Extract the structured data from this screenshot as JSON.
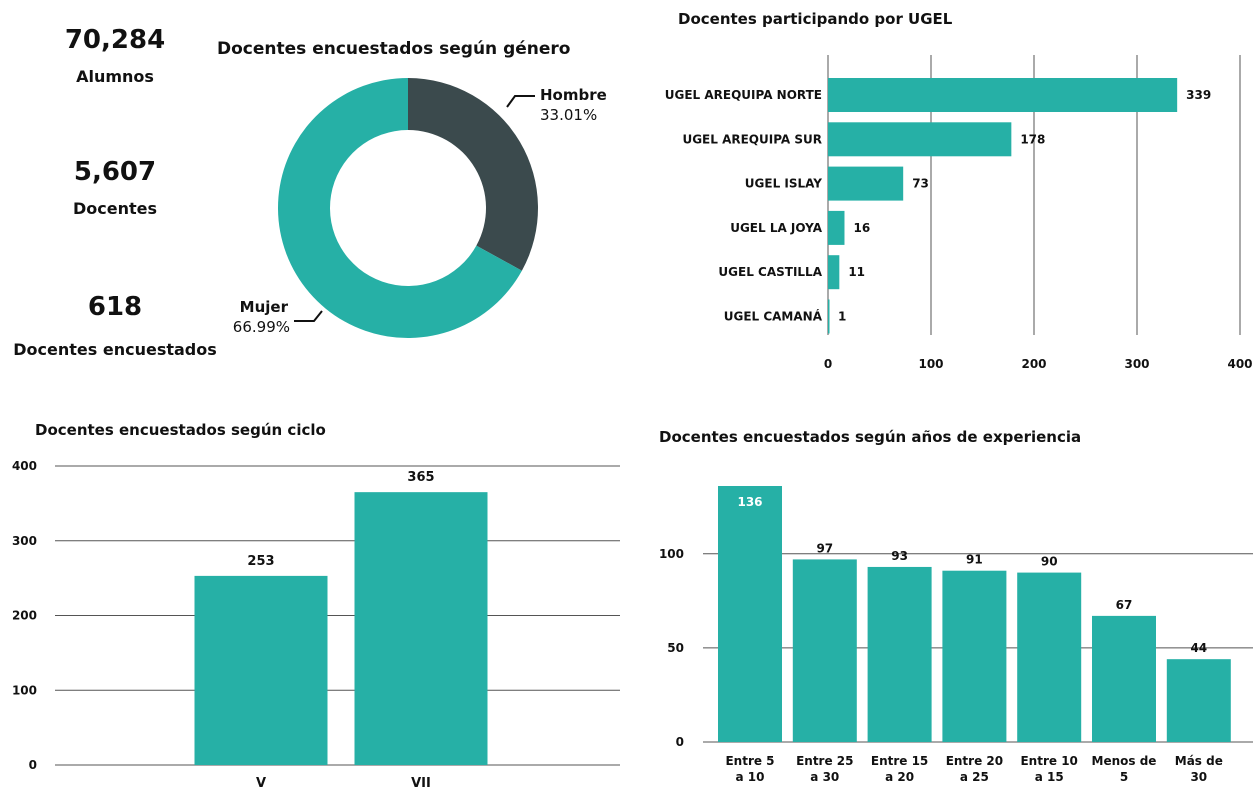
{
  "kpis": [
    {
      "value": "70,284",
      "label": "Alumnos"
    },
    {
      "value": "5,607",
      "label": "Docentes"
    },
    {
      "value": "618",
      "label": "Docentes encuestados"
    }
  ],
  "colors": {
    "teal": "#26b0a6",
    "dark": "#3b4a4d",
    "grid": "#555555",
    "text": "#111111"
  },
  "chart_data": [
    {
      "type": "pie",
      "donut": true,
      "title": "Docentes encuestados según género",
      "slices": [
        {
          "label": "Hombre",
          "value": 33.01,
          "display": "33.01%",
          "color": "#3b4a4d"
        },
        {
          "label": "Mujer",
          "value": 66.99,
          "display": "66.99%",
          "color": "#26b0a6"
        }
      ]
    },
    {
      "type": "bar",
      "orientation": "horizontal",
      "title": "Docentes participando por UGEL",
      "categories": [
        "UGEL AREQUIPA NORTE",
        "UGEL AREQUIPA SUR",
        "UGEL ISLAY",
        "UGEL LA JOYA",
        "UGEL CASTILLA",
        "UGEL CAMANÁ"
      ],
      "values": [
        339,
        178,
        73,
        16,
        11,
        1
      ],
      "xlim": [
        0,
        400
      ],
      "ticks": [
        0,
        100,
        200,
        300,
        400
      ],
      "grid": true
    },
    {
      "type": "bar",
      "title": "Docentes encuestados según ciclo",
      "categories": [
        "V",
        "VII"
      ],
      "values": [
        253,
        365
      ],
      "ylim": [
        0,
        400
      ],
      "ticks": [
        0,
        100,
        200,
        300,
        400
      ],
      "grid": true
    },
    {
      "type": "bar",
      "title": "Docentes encuestados según años de experiencia",
      "categories": [
        "Entre 5 a 10",
        "Entre 25 a 30",
        "Entre 15 a 20",
        "Entre 20 a 25",
        "Entre 10 a 15",
        "Menos de 5",
        "Más de 30"
      ],
      "values": [
        136,
        97,
        93,
        91,
        90,
        67,
        44
      ],
      "ylim": [
        0,
        136
      ],
      "ticks": [
        0,
        50,
        100
      ],
      "grid": true
    }
  ]
}
